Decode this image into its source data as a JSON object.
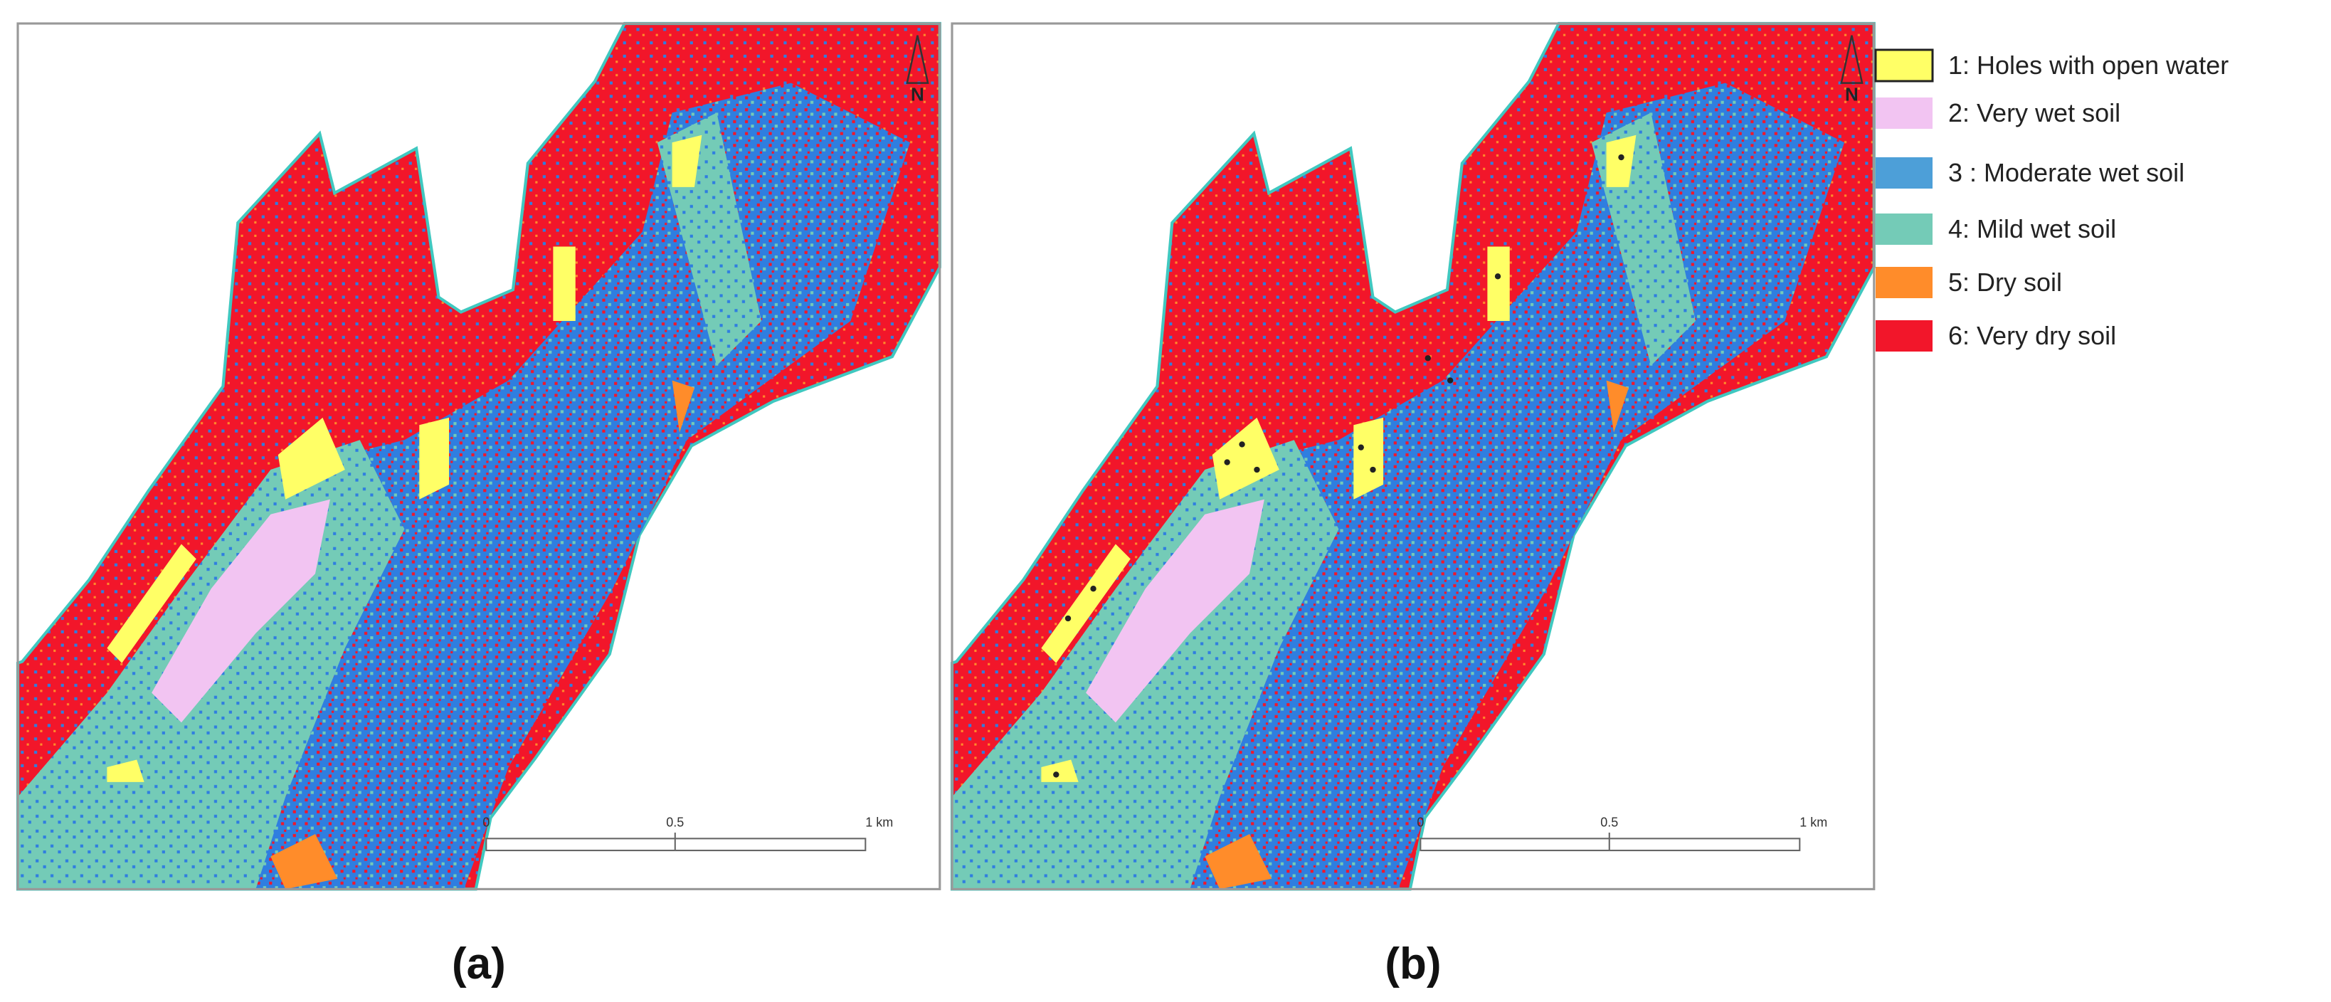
{
  "panels": [
    {
      "label": "(a)",
      "north": "N",
      "scale": [
        "0",
        "0.5",
        "1 km"
      ]
    },
    {
      "label": "(b)",
      "north": "N",
      "scale": [
        "0",
        "0.5",
        "1 km"
      ]
    }
  ],
  "legend": [
    {
      "label": "1: Holes with open water",
      "color": "#ffff66"
    },
    {
      "label": "2: Very wet soil",
      "color": "#f2c4f2"
    },
    {
      "label": "3 : Moderate wet soil",
      "color": "#4d9fd8"
    },
    {
      "label": "4: Mild wet soil",
      "color": "#74cbb7"
    },
    {
      "label": "5: Dry soil",
      "color": "#ff8c2a"
    },
    {
      "label": "6: Very dry soil",
      "color": "#f2162a"
    }
  ]
}
